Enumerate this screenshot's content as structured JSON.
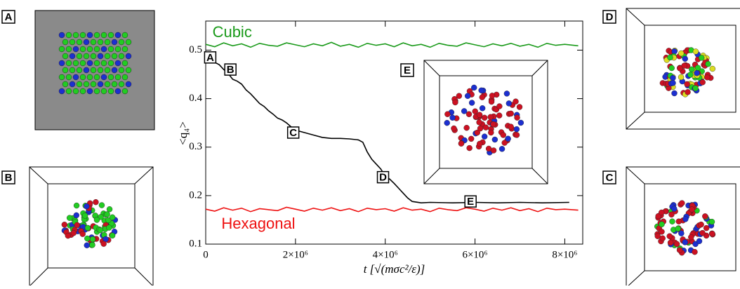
{
  "chart_data": {
    "type": "line",
    "xlabel": "t [√(mσc²/ε)]",
    "ylabel": "<q₄>",
    "xlim": [
      0,
      8400000
    ],
    "ylim": [
      0.1,
      0.56
    ],
    "xticks": [
      0,
      {
        "value": 2000000,
        "label": "2×10⁶"
      },
      {
        "value": 4000000,
        "label": "4×10⁶"
      },
      {
        "value": 6000000,
        "label": "6×10⁶"
      },
      {
        "value": 8000000,
        "label": "8×10⁶"
      }
    ],
    "yticks": [
      0.1,
      0.2,
      0.3,
      0.4,
      0.5
    ],
    "series": [
      {
        "name": "Cubic",
        "color": "#1a9a1a",
        "x": [
          0,
          200000,
          400000,
          600000,
          800000,
          1000000,
          1200000,
          1400000,
          1600000,
          1800000,
          2000000,
          2200000,
          2400000,
          2600000,
          2800000,
          3000000,
          3200000,
          3400000,
          3600000,
          3800000,
          4000000,
          4200000,
          4400000,
          4600000,
          4800000,
          5000000,
          5200000,
          5400000,
          5600000,
          5800000,
          6000000,
          6200000,
          6400000,
          6600000,
          6800000,
          7000000,
          7200000,
          7400000,
          7600000,
          7800000,
          8000000,
          8300000
        ],
        "values": [
          0.512,
          0.507,
          0.515,
          0.509,
          0.513,
          0.506,
          0.514,
          0.51,
          0.508,
          0.515,
          0.511,
          0.507,
          0.513,
          0.509,
          0.516,
          0.508,
          0.512,
          0.506,
          0.514,
          0.51,
          0.513,
          0.507,
          0.515,
          0.509,
          0.512,
          0.506,
          0.514,
          0.51,
          0.508,
          0.515,
          0.511,
          0.507,
          0.513,
          0.509,
          0.514,
          0.508,
          0.512,
          0.506,
          0.514,
          0.51,
          0.512,
          0.509
        ]
      },
      {
        "name": "Hexagonal",
        "color": "#ee1111",
        "x": [
          0,
          200000,
          400000,
          600000,
          800000,
          1000000,
          1200000,
          1400000,
          1600000,
          1800000,
          2000000,
          2200000,
          2400000,
          2600000,
          2800000,
          3000000,
          3200000,
          3400000,
          3600000,
          3800000,
          4000000,
          4200000,
          4400000,
          4600000,
          4800000,
          5000000,
          5200000,
          5400000,
          5600000,
          5800000,
          6000000,
          6200000,
          6400000,
          6600000,
          6800000,
          7000000,
          7200000,
          7400000,
          7600000,
          7800000,
          8000000,
          8300000
        ],
        "values": [
          0.172,
          0.168,
          0.175,
          0.17,
          0.174,
          0.167,
          0.173,
          0.171,
          0.169,
          0.176,
          0.172,
          0.168,
          0.174,
          0.17,
          0.175,
          0.169,
          0.173,
          0.167,
          0.174,
          0.171,
          0.173,
          0.168,
          0.175,
          0.17,
          0.172,
          0.167,
          0.174,
          0.171,
          0.169,
          0.175,
          0.172,
          0.168,
          0.174,
          0.17,
          0.175,
          0.169,
          0.173,
          0.167,
          0.174,
          0.171,
          0.172,
          0.17
        ]
      },
      {
        "name": null,
        "color": "#000000",
        "x": [
          0,
          100000,
          200000,
          300000,
          400000,
          500000,
          600000,
          700000,
          800000,
          900000,
          1000000,
          1100000,
          1200000,
          1300000,
          1400000,
          1500000,
          1600000,
          1700000,
          1800000,
          1900000,
          2000000,
          2200000,
          2400000,
          2600000,
          2800000,
          3000000,
          3200000,
          3400000,
          3500000,
          3600000,
          3700000,
          3800000,
          3900000,
          4000000,
          4100000,
          4200000,
          4300000,
          4400000,
          4500000,
          4600000,
          4800000,
          5000000,
          5500000,
          6000000,
          6500000,
          7000000,
          7500000,
          8100000
        ],
        "values": [
          0.49,
          0.482,
          0.475,
          0.47,
          0.46,
          0.452,
          0.44,
          0.436,
          0.43,
          0.418,
          0.41,
          0.4,
          0.39,
          0.384,
          0.375,
          0.368,
          0.36,
          0.356,
          0.35,
          0.342,
          0.335,
          0.33,
          0.325,
          0.32,
          0.318,
          0.318,
          0.317,
          0.315,
          0.31,
          0.29,
          0.275,
          0.265,
          0.255,
          0.24,
          0.234,
          0.225,
          0.215,
          0.205,
          0.195,
          0.188,
          0.185,
          0.186,
          0.185,
          0.186,
          0.185,
          0.186,
          0.185,
          0.186
        ]
      }
    ],
    "annotations": [
      {
        "text": "Cubic",
        "x": 150000,
        "y": 0.535
      },
      {
        "text": "Hexagonal",
        "x": 350000,
        "y": 0.14
      }
    ],
    "markers": [
      {
        "text": "A",
        "x": 100000,
        "y": 0.485
      },
      {
        "text": "B",
        "x": 550000,
        "y": 0.46
      },
      {
        "text": "C",
        "x": 1950000,
        "y": 0.33
      },
      {
        "text": "D",
        "x": 3950000,
        "y": 0.238
      },
      {
        "text": "E",
        "x": 5900000,
        "y": 0.188
      }
    ]
  },
  "panels": [
    {
      "label": "A"
    },
    {
      "label": "B"
    },
    {
      "label": "E"
    },
    {
      "label": "D"
    },
    {
      "label": "C"
    }
  ]
}
